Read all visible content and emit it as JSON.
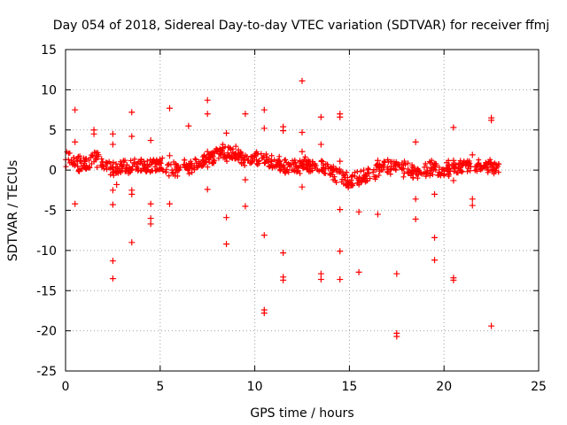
{
  "chart_data": {
    "type": "scatter",
    "title": "Day 054 of 2018, Sidereal Day-to-day VTEC variation (SDTVAR) for receiver ffmj",
    "xlabel": "GPS time / hours",
    "ylabel": "SDTVAR / TECUs",
    "xlim": [
      0,
      25
    ],
    "ylim": [
      -25,
      15
    ],
    "xticks": [
      0,
      5,
      10,
      15,
      20,
      25
    ],
    "yticks": [
      15,
      10,
      5,
      0,
      -5,
      -10,
      -15,
      -20,
      -25
    ],
    "grid": true,
    "marker": "+",
    "color": "#ff0000",
    "band": [
      [
        0.0,
        1.5
      ],
      [
        0.3,
        1.2
      ],
      [
        0.6,
        0.8
      ],
      [
        1.0,
        0.5
      ],
      [
        1.3,
        1.0
      ],
      [
        1.5,
        1.6
      ],
      [
        1.8,
        1.2
      ],
      [
        2.0,
        0.6
      ],
      [
        2.3,
        0.2
      ],
      [
        2.6,
        0.4
      ],
      [
        3.0,
        0.5
      ],
      [
        3.3,
        0.2
      ],
      [
        3.6,
        0.5
      ],
      [
        4.0,
        0.6
      ],
      [
        4.3,
        0.3
      ],
      [
        4.6,
        0.5
      ],
      [
        5.0,
        0.6
      ],
      [
        5.3,
        0.2
      ],
      [
        5.6,
        0.3
      ],
      [
        6.0,
        0.2
      ],
      [
        6.3,
        0.6
      ],
      [
        6.6,
        0.4
      ],
      [
        7.0,
        0.8
      ],
      [
        7.3,
        1.2
      ],
      [
        7.6,
        1.4
      ],
      [
        8.0,
        1.8
      ],
      [
        8.3,
        2.2
      ],
      [
        8.6,
        2.0
      ],
      [
        9.0,
        2.2
      ],
      [
        9.3,
        1.6
      ],
      [
        9.6,
        1.2
      ],
      [
        10.0,
        1.4
      ],
      [
        10.3,
        1.6
      ],
      [
        10.6,
        1.0
      ],
      [
        11.0,
        0.8
      ],
      [
        11.3,
        0.6
      ],
      [
        11.6,
        0.4
      ],
      [
        12.0,
        0.6
      ],
      [
        12.3,
        0.5
      ],
      [
        12.6,
        0.9
      ],
      [
        13.0,
        0.6
      ],
      [
        13.3,
        0.7
      ],
      [
        13.6,
        0.4
      ],
      [
        14.0,
        -0.2
      ],
      [
        14.3,
        -0.6
      ],
      [
        14.6,
        -0.8
      ],
      [
        15.0,
        -1.5
      ],
      [
        15.3,
        -1.2
      ],
      [
        15.6,
        -0.9
      ],
      [
        16.0,
        -0.6
      ],
      [
        16.3,
        -0.3
      ],
      [
        16.6,
        0.2
      ],
      [
        17.0,
        0.4
      ],
      [
        17.3,
        0.6
      ],
      [
        17.6,
        0.3
      ],
      [
        18.0,
        0.2
      ],
      [
        18.3,
        -0.2
      ],
      [
        18.6,
        -0.4
      ],
      [
        19.0,
        0.1
      ],
      [
        19.3,
        0.2
      ],
      [
        19.6,
        0.3
      ],
      [
        20.0,
        0.2
      ],
      [
        20.3,
        0.2
      ],
      [
        20.6,
        0.3
      ],
      [
        21.0,
        0.4
      ],
      [
        21.3,
        0.4
      ],
      [
        21.6,
        0.5
      ],
      [
        22.0,
        0.2
      ],
      [
        22.3,
        0.4
      ],
      [
        22.6,
        0.3
      ],
      [
        22.9,
        0.3
      ]
    ],
    "points": [
      [
        0.5,
        7.5
      ],
      [
        0.5,
        3.5
      ],
      [
        0.5,
        -4.2
      ],
      [
        1.5,
        5.0
      ],
      [
        1.5,
        4.5
      ],
      [
        2.5,
        4.5
      ],
      [
        2.5,
        3.2
      ],
      [
        2.5,
        -2.5
      ],
      [
        2.5,
        -4.3
      ],
      [
        2.5,
        -11.3
      ],
      [
        2.5,
        -13.5
      ],
      [
        2.7,
        -1.8
      ],
      [
        3.5,
        7.2
      ],
      [
        3.5,
        4.2
      ],
      [
        3.5,
        -2.5
      ],
      [
        3.5,
        -3.0
      ],
      [
        3.5,
        -9.0
      ],
      [
        4.5,
        3.7
      ],
      [
        4.5,
        -4.2
      ],
      [
        4.5,
        -6.0
      ],
      [
        4.5,
        -6.7
      ],
      [
        5.5,
        7.7
      ],
      [
        5.5,
        1.8
      ],
      [
        5.5,
        -4.2
      ],
      [
        6.5,
        5.5
      ],
      [
        7.5,
        8.7
      ],
      [
        7.5,
        7.0
      ],
      [
        7.5,
        2.3
      ],
      [
        7.5,
        -2.4
      ],
      [
        8.5,
        4.6
      ],
      [
        8.5,
        -5.9
      ],
      [
        8.5,
        -9.2
      ],
      [
        9.5,
        7.0
      ],
      [
        9.5,
        -1.2
      ],
      [
        9.5,
        -4.5
      ],
      [
        10.5,
        7.5
      ],
      [
        10.5,
        5.2
      ],
      [
        10.5,
        -8.1
      ],
      [
        10.5,
        -17.4
      ],
      [
        10.5,
        -17.8
      ],
      [
        11.5,
        5.4
      ],
      [
        11.5,
        4.9
      ],
      [
        11.5,
        -10.3
      ],
      [
        11.5,
        -13.3
      ],
      [
        11.5,
        -13.7
      ],
      [
        12.5,
        11.1
      ],
      [
        12.5,
        4.7
      ],
      [
        12.5,
        2.3
      ],
      [
        12.5,
        -2.1
      ],
      [
        13.5,
        6.6
      ],
      [
        13.5,
        3.2
      ],
      [
        13.5,
        -12.9
      ],
      [
        13.5,
        -13.6
      ],
      [
        14.5,
        7.0
      ],
      [
        14.5,
        6.6
      ],
      [
        14.5,
        1.1
      ],
      [
        14.5,
        -4.9
      ],
      [
        14.5,
        -10.1
      ],
      [
        14.5,
        -13.6
      ],
      [
        15.5,
        -5.2
      ],
      [
        15.5,
        -12.7
      ],
      [
        16.5,
        -5.5
      ],
      [
        16.5,
        1.2
      ],
      [
        17.5,
        -12.9
      ],
      [
        17.5,
        -20.3
      ],
      [
        17.5,
        -20.7
      ],
      [
        18.5,
        3.5
      ],
      [
        18.5,
        -3.6
      ],
      [
        18.5,
        -6.1
      ],
      [
        19.5,
        -3.0
      ],
      [
        19.5,
        -8.4
      ],
      [
        19.5,
        -11.2
      ],
      [
        20.5,
        5.3
      ],
      [
        20.5,
        1.2
      ],
      [
        20.5,
        -1.3
      ],
      [
        20.5,
        -13.4
      ],
      [
        20.5,
        -13.7
      ],
      [
        21.5,
        -3.6
      ],
      [
        21.5,
        -4.4
      ],
      [
        21.5,
        1.9
      ],
      [
        22.5,
        6.5
      ],
      [
        22.5,
        6.2
      ],
      [
        22.5,
        -19.4
      ]
    ]
  }
}
